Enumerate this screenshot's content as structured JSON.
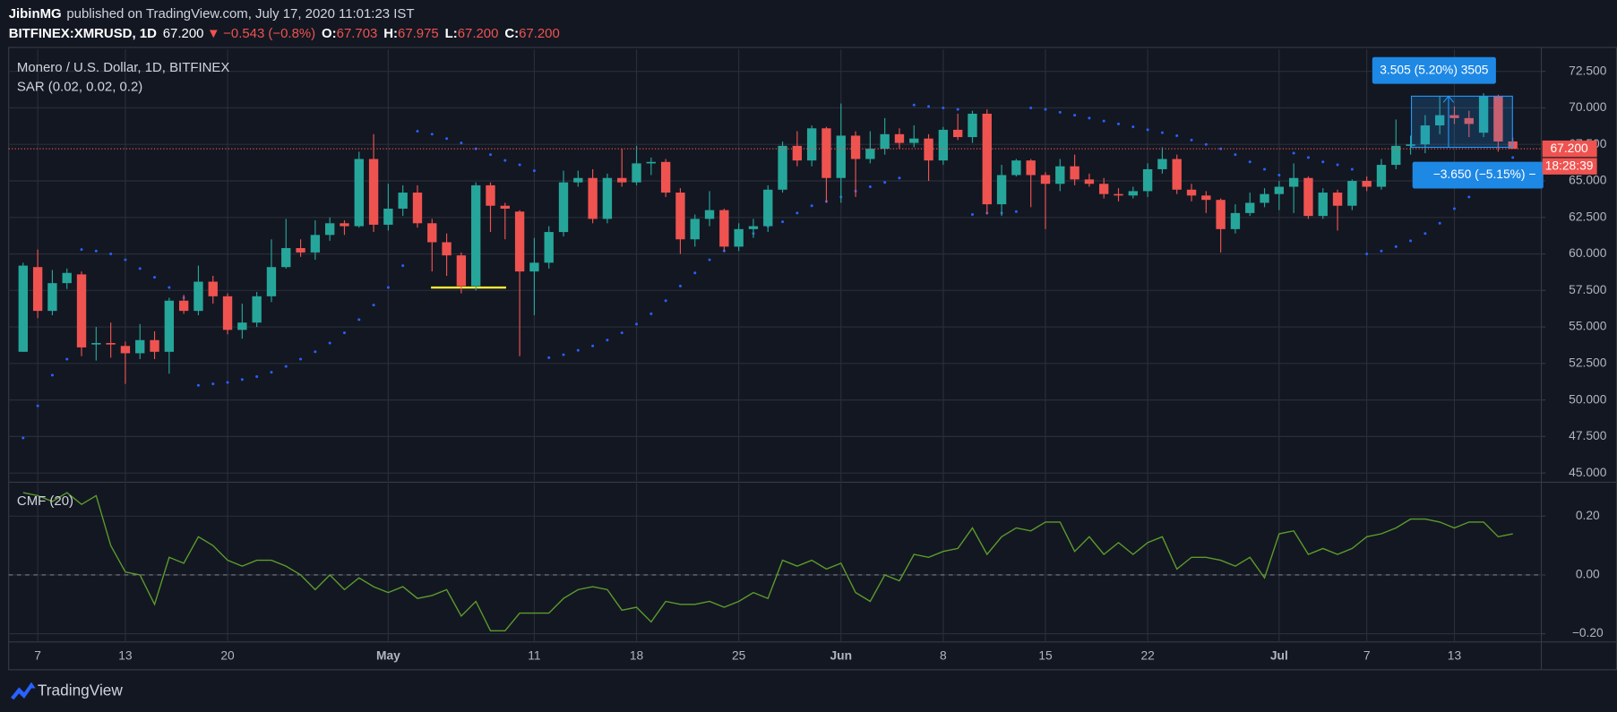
{
  "header": {
    "author": "JibinMG",
    "published": "published on TradingView.com, July 17, 2020 11:01:23 IST",
    "symbol": "BITFINEX:XMRUSD, 1D",
    "last": "67.200",
    "arrow": "▼",
    "change": "−0.543 (−0.8%)",
    "ohlc": [
      {
        "label": "O:",
        "value": "67.703"
      },
      {
        "label": "H:",
        "value": "67.975"
      },
      {
        "label": "L:",
        "value": "67.200"
      },
      {
        "label": "C:",
        "value": "67.200"
      }
    ],
    "down_color": "#ef5350"
  },
  "chart_data": [
    {
      "type": "candlestick",
      "title": "Monero / U.S. Dollar, 1D, BITFINEX",
      "categories": [
        null,
        "7",
        null,
        null,
        null,
        null,
        null,
        "13",
        null,
        null,
        null,
        null,
        null,
        null,
        "20",
        null,
        null,
        null,
        null,
        null,
        null,
        null,
        null,
        null,
        null,
        "May",
        null,
        null,
        null,
        null,
        null,
        null,
        null,
        null,
        null,
        "11",
        null,
        null,
        null,
        null,
        null,
        null,
        "18",
        null,
        null,
        null,
        null,
        null,
        null,
        "25",
        null,
        null,
        null,
        null,
        null,
        null,
        "Jun",
        null,
        null,
        null,
        null,
        null,
        null,
        "8",
        null,
        null,
        null,
        null,
        null,
        null,
        "15",
        null,
        null,
        null,
        null,
        null,
        null,
        "22",
        null,
        null,
        null,
        null,
        null,
        null,
        null,
        null,
        "Jul",
        null,
        null,
        null,
        null,
        null,
        "7",
        null,
        null,
        null,
        null,
        null,
        "13",
        null,
        null,
        null,
        null
      ],
      "open": [
        53.3,
        59.1,
        56.1,
        58.0,
        58.6,
        53.8,
        53.9,
        53.7,
        53.2,
        54.1,
        53.3,
        56.8,
        56.1,
        58.1,
        57.1,
        54.8,
        55.3,
        57.1,
        59.1,
        60.4,
        60.1,
        61.3,
        62.1,
        61.9,
        66.5,
        62.0,
        63.1,
        64.2,
        62.1,
        60.8,
        59.9,
        57.8,
        64.7,
        63.3,
        62.9,
        58.8,
        59.4,
        61.5,
        64.9,
        65.2,
        62.4,
        65.2,
        64.9,
        66.2,
        66.3,
        64.2,
        61.0,
        62.4,
        63.0,
        60.5,
        61.7,
        61.9,
        64.4,
        67.4,
        66.4,
        68.6,
        65.2,
        68.1,
        66.5,
        67.2,
        68.2,
        67.6,
        67.9,
        66.4,
        68.5,
        68.0,
        69.6,
        63.4,
        65.4,
        66.4,
        65.4,
        64.8,
        66.0,
        65.1,
        64.8,
        64.1,
        64.0,
        64.3,
        65.8,
        66.5,
        64.4,
        64.0,
        63.7,
        61.7,
        62.8,
        63.5,
        64.1,
        64.6,
        65.2,
        62.6,
        64.2,
        63.3,
        65.0,
        64.6,
        66.1,
        67.4,
        67.5,
        68.8,
        69.5,
        69.3,
        68.3,
        70.8,
        67.703
      ],
      "high": [
        59.4,
        60.3,
        58.9,
        59.0,
        58.8,
        55.0,
        55.3,
        54.0,
        55.2,
        54.7,
        57.0,
        57.2,
        59.2,
        58.5,
        57.3,
        56.6,
        57.4,
        61.0,
        62.4,
        61.0,
        62.3,
        62.5,
        62.3,
        67.0,
        68.2,
        64.8,
        64.7,
        64.7,
        62.4,
        61.4,
        60.1,
        64.9,
        64.9,
        63.5,
        63.0,
        61.1,
        61.9,
        65.7,
        65.7,
        65.8,
        65.5,
        67.2,
        67.4,
        66.6,
        66.5,
        64.5,
        62.7,
        64.3,
        63.1,
        62.1,
        62.4,
        64.7,
        67.7,
        68.4,
        68.8,
        68.7,
        70.3,
        68.4,
        68.4,
        69.3,
        68.6,
        68.8,
        68.2,
        68.7,
        69.6,
        69.8,
        69.9,
        66.1,
        66.5,
        66.5,
        65.6,
        66.5,
        66.8,
        65.5,
        65.2,
        64.5,
        64.6,
        66.2,
        67.3,
        66.8,
        64.8,
        64.3,
        63.8,
        63.4,
        64.2,
        64.5,
        65.0,
        66.2,
        65.3,
        64.5,
        64.4,
        65.1,
        65.3,
        66.5,
        69.2,
        68.1,
        69.5,
        70.8,
        70.1,
        69.8,
        71.0,
        70.9,
        67.975
      ],
      "low": [
        53.3,
        55.6,
        55.8,
        57.6,
        53.0,
        52.7,
        52.9,
        51.1,
        52.8,
        52.8,
        51.8,
        55.9,
        55.8,
        56.6,
        54.5,
        54.2,
        55.0,
        56.7,
        59.0,
        59.8,
        59.6,
        60.9,
        61.3,
        61.8,
        61.5,
        61.6,
        62.6,
        61.8,
        58.8,
        58.5,
        57.3,
        57.5,
        61.5,
        61.0,
        53.0,
        55.8,
        59.0,
        61.2,
        64.6,
        62.1,
        62.1,
        64.6,
        64.7,
        65.4,
        63.9,
        60.0,
        60.5,
        61.9,
        60.2,
        60.2,
        61.1,
        61.5,
        64.2,
        66.0,
        66.0,
        63.5,
        63.5,
        63.9,
        66.2,
        66.8,
        67.2,
        67.3,
        65.0,
        66.1,
        67.8,
        67.6,
        62.7,
        62.6,
        65.3,
        63.2,
        61.7,
        64.3,
        64.7,
        64.6,
        63.8,
        63.6,
        63.8,
        63.9,
        65.5,
        64.1,
        63.6,
        62.8,
        60.1,
        61.4,
        62.6,
        63.2,
        63.0,
        62.8,
        62.4,
        62.4,
        61.6,
        63.0,
        64.3,
        64.4,
        65.8,
        66.8,
        66.9,
        68.2,
        68.9,
        68.0,
        68.0,
        67.0,
        67.2
      ],
      "close": [
        59.2,
        56.1,
        58.0,
        58.7,
        53.6,
        53.9,
        53.8,
        53.2,
        54.1,
        53.3,
        56.8,
        56.1,
        58.1,
        57.1,
        54.8,
        55.3,
        57.1,
        59.1,
        60.4,
        60.1,
        61.3,
        62.1,
        61.9,
        66.5,
        62.0,
        63.1,
        64.2,
        62.1,
        60.8,
        59.9,
        57.8,
        64.7,
        63.3,
        63.1,
        58.8,
        59.4,
        61.5,
        64.9,
        65.2,
        62.4,
        65.2,
        64.9,
        66.2,
        66.3,
        64.2,
        61.0,
        62.4,
        63.0,
        60.5,
        61.7,
        61.9,
        64.4,
        67.4,
        66.4,
        68.6,
        65.2,
        68.1,
        66.5,
        67.2,
        68.2,
        67.6,
        67.9,
        66.4,
        68.5,
        68.0,
        69.6,
        63.4,
        65.4,
        66.4,
        65.4,
        64.8,
        66.0,
        65.1,
        64.8,
        64.1,
        64.0,
        64.3,
        65.8,
        66.5,
        64.4,
        64.0,
        63.7,
        61.7,
        62.8,
        63.5,
        64.1,
        64.6,
        65.2,
        62.6,
        64.2,
        63.3,
        65.0,
        64.6,
        66.1,
        67.4,
        67.5,
        68.8,
        69.5,
        69.3,
        68.9,
        70.8,
        67.7,
        67.2
      ],
      "up_color": "#26a69a",
      "down_color": "#ef5350",
      "sar": {
        "name": "SAR (0.02, 0.02, 0.2)",
        "color": "#2962ff",
        "values": [
          47.4,
          49.6,
          51.7,
          52.8,
          60.3,
          60.2,
          60.0,
          59.6,
          59.0,
          58.4,
          57.7,
          57.0,
          51.0,
          51.1,
          51.2,
          51.4,
          51.6,
          51.9,
          52.3,
          52.8,
          53.3,
          53.9,
          54.6,
          55.5,
          56.5,
          57.7,
          59.2,
          68.4,
          68.2,
          67.9,
          67.6,
          67.2,
          66.8,
          66.4,
          66.1,
          65.7,
          52.9,
          53.1,
          53.4,
          53.7,
          54.1,
          54.6,
          55.2,
          55.9,
          56.8,
          57.8,
          58.7,
          59.6,
          60.2,
          60.9,
          61.4,
          61.9,
          62.2,
          62.8,
          63.3,
          63.6,
          63.9,
          64.3,
          64.6,
          64.9,
          65.2,
          70.2,
          70.1,
          70.0,
          69.9,
          62.7,
          62.8,
          62.8,
          62.9,
          70.0,
          69.9,
          69.7,
          69.5,
          69.3,
          69.1,
          68.9,
          68.7,
          68.5,
          68.3,
          68.1,
          67.8,
          67.5,
          67.2,
          66.8,
          66.3,
          65.8,
          65.4,
          66.9,
          66.6,
          66.3,
          66.1,
          65.8,
          60.0,
          60.2,
          60.5,
          60.9,
          61.4,
          62.1,
          63.1,
          63.9,
          64.8,
          65.8,
          66.6
        ]
      },
      "last_price": {
        "value": 67.2,
        "label": "67.200",
        "countdown": "18:28:39",
        "color": "#ef5350"
      },
      "hline": {
        "value": 57.7,
        "color": "#ffeb3b"
      },
      "measure": {
        "low": 67.3,
        "high": 70.8,
        "up_label": "3.505 (5.20%) 3505",
        "down_label": "−3.650 (−5.15%) −",
        "color": "#2196f3"
      },
      "ylim": [
        44.44,
        74.0
      ],
      "yticks": [
        {
          "value": 72.5,
          "label": "72.500"
        },
        {
          "value": 70,
          "label": "70.000"
        },
        {
          "value": 67.5,
          "label": "67.500"
        },
        {
          "value": 65,
          "label": "65.000"
        },
        {
          "value": 62.5,
          "label": "62.500"
        },
        {
          "value": 60,
          "label": "60.000"
        },
        {
          "value": 57.5,
          "label": "57.500"
        },
        {
          "value": 55,
          "label": "55.000"
        },
        {
          "value": 52.5,
          "label": "52.500"
        },
        {
          "value": 50,
          "label": "50.000"
        },
        {
          "value": 47.5,
          "label": "47.500"
        },
        {
          "value": 45,
          "label": "45.000"
        }
      ],
      "grid": true
    },
    {
      "type": "line",
      "title": "CMF (20)",
      "color": "#5b9c2b",
      "values": [
        0.28,
        0.27,
        0.25,
        0.28,
        0.24,
        0.27,
        0.1,
        0.01,
        0.0,
        -0.1,
        0.06,
        0.04,
        0.13,
        0.1,
        0.05,
        0.03,
        0.05,
        0.05,
        0.03,
        0.0,
        -0.05,
        0.0,
        -0.05,
        -0.01,
        -0.04,
        -0.06,
        -0.04,
        -0.08,
        -0.07,
        -0.05,
        -0.14,
        -0.09,
        -0.19,
        -0.19,
        -0.13,
        -0.13,
        -0.13,
        -0.08,
        -0.05,
        -0.04,
        -0.05,
        -0.12,
        -0.11,
        -0.16,
        -0.09,
        -0.1,
        -0.1,
        -0.09,
        -0.11,
        -0.09,
        -0.06,
        -0.08,
        0.05,
        0.03,
        0.05,
        0.02,
        0.04,
        -0.06,
        -0.09,
        0.0,
        -0.02,
        0.07,
        0.06,
        0.08,
        0.09,
        0.16,
        0.07,
        0.13,
        0.16,
        0.15,
        0.18,
        0.18,
        0.08,
        0.13,
        0.07,
        0.11,
        0.07,
        0.11,
        0.13,
        0.02,
        0.06,
        0.06,
        0.05,
        0.03,
        0.06,
        -0.01,
        0.14,
        0.15,
        0.07,
        0.09,
        0.07,
        0.09,
        0.13,
        0.14,
        0.16,
        0.19,
        0.19,
        0.18,
        0.16,
        0.18,
        0.18,
        0.13,
        0.14
      ],
      "ylim": [
        -0.228,
        0.312
      ],
      "yticks": [
        {
          "value": 0.2,
          "label": "0.20"
        },
        {
          "value": 0,
          "label": "0.00"
        },
        {
          "value": -0.2,
          "label": "−0.20"
        }
      ],
      "grid": true,
      "zero_line": true
    }
  ],
  "footer": {
    "logo": "TradingView"
  }
}
